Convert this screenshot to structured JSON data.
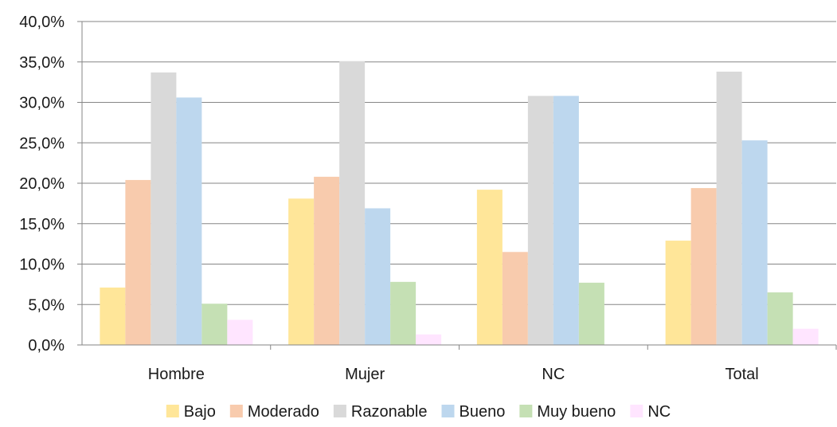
{
  "chart_data": {
    "type": "bar",
    "title": "",
    "xlabel": "",
    "ylabel": "",
    "categories": [
      "Hombre",
      "Mujer",
      "NC",
      "Total"
    ],
    "ylim": [
      0,
      40
    ],
    "yticks": [
      0,
      5,
      10,
      15,
      20,
      25,
      30,
      35,
      40
    ],
    "ytick_labels": [
      "0,0%",
      "5,0%",
      "10,0%",
      "15,0%",
      "20,0%",
      "25,0%",
      "30,0%",
      "35,0%",
      "40,0%"
    ],
    "grid": true,
    "legend_position": "bottom",
    "series": [
      {
        "name": "Bajo",
        "color": "#FFE699",
        "values": [
          7.1,
          18.1,
          19.2,
          12.9
        ]
      },
      {
        "name": "Moderado",
        "color": "#F8CBAD",
        "values": [
          20.4,
          20.8,
          11.5,
          19.4
        ]
      },
      {
        "name": "Razonable",
        "color": "#D9D9D9",
        "values": [
          33.7,
          35.1,
          30.8,
          33.8
        ]
      },
      {
        "name": "Bueno",
        "color": "#BDD7EE",
        "values": [
          30.6,
          16.9,
          30.8,
          25.3
        ]
      },
      {
        "name": "Muy bueno",
        "color": "#C5E0B4",
        "values": [
          5.1,
          7.8,
          7.7,
          6.5
        ]
      },
      {
        "name": "NC",
        "color": "#FFE5FF",
        "values": [
          3.1,
          1.3,
          0.0,
          2.0
        ]
      }
    ]
  }
}
